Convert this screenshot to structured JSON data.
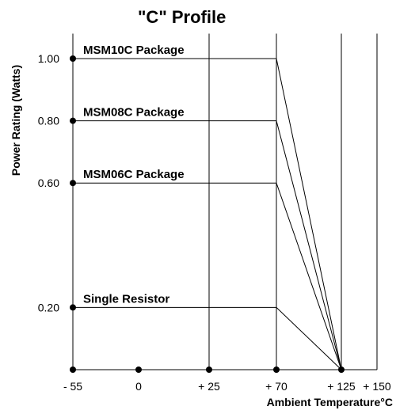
{
  "chart_data": {
    "type": "line",
    "title": "\"C\" Profile",
    "ylabel": "Power Rating (Watts)",
    "xlabel": "Ambient Temperature°C",
    "x_ticks": [
      {
        "value": -55,
        "label": "- 55"
      },
      {
        "value": 0,
        "label": "0"
      },
      {
        "value": 25,
        "label": "+ 25"
      },
      {
        "value": 70,
        "label": "+ 70"
      },
      {
        "value": 125,
        "label": "+ 125"
      },
      {
        "value": 150,
        "label": "+ 150"
      }
    ],
    "y_ticks": [
      {
        "value": 1.0,
        "label": "1.00"
      },
      {
        "value": 0.8,
        "label": "0.80"
      },
      {
        "value": 0.6,
        "label": "0.60"
      },
      {
        "value": 0.2,
        "label": "0.20"
      }
    ],
    "xlim": [
      -55,
      150
    ],
    "ylim": [
      0,
      1.08
    ],
    "vertical_gridlines_at": [
      25,
      70,
      125
    ],
    "series": [
      {
        "name": "MSM10C Package",
        "x": [
          -55,
          70,
          125
        ],
        "y": [
          1.0,
          1.0,
          0
        ]
      },
      {
        "name": "MSM08C Package",
        "x": [
          -55,
          70,
          125
        ],
        "y": [
          0.8,
          0.8,
          0
        ]
      },
      {
        "name": "MSM06C Package",
        "x": [
          -55,
          70,
          125
        ],
        "y": [
          0.6,
          0.6,
          0
        ]
      },
      {
        "name": "Single Resistor",
        "x": [
          -55,
          70,
          125
        ],
        "y": [
          0.2,
          0.2,
          0
        ]
      }
    ],
    "baseline_points_x": [
      -55,
      0,
      25,
      70,
      125
    ]
  }
}
